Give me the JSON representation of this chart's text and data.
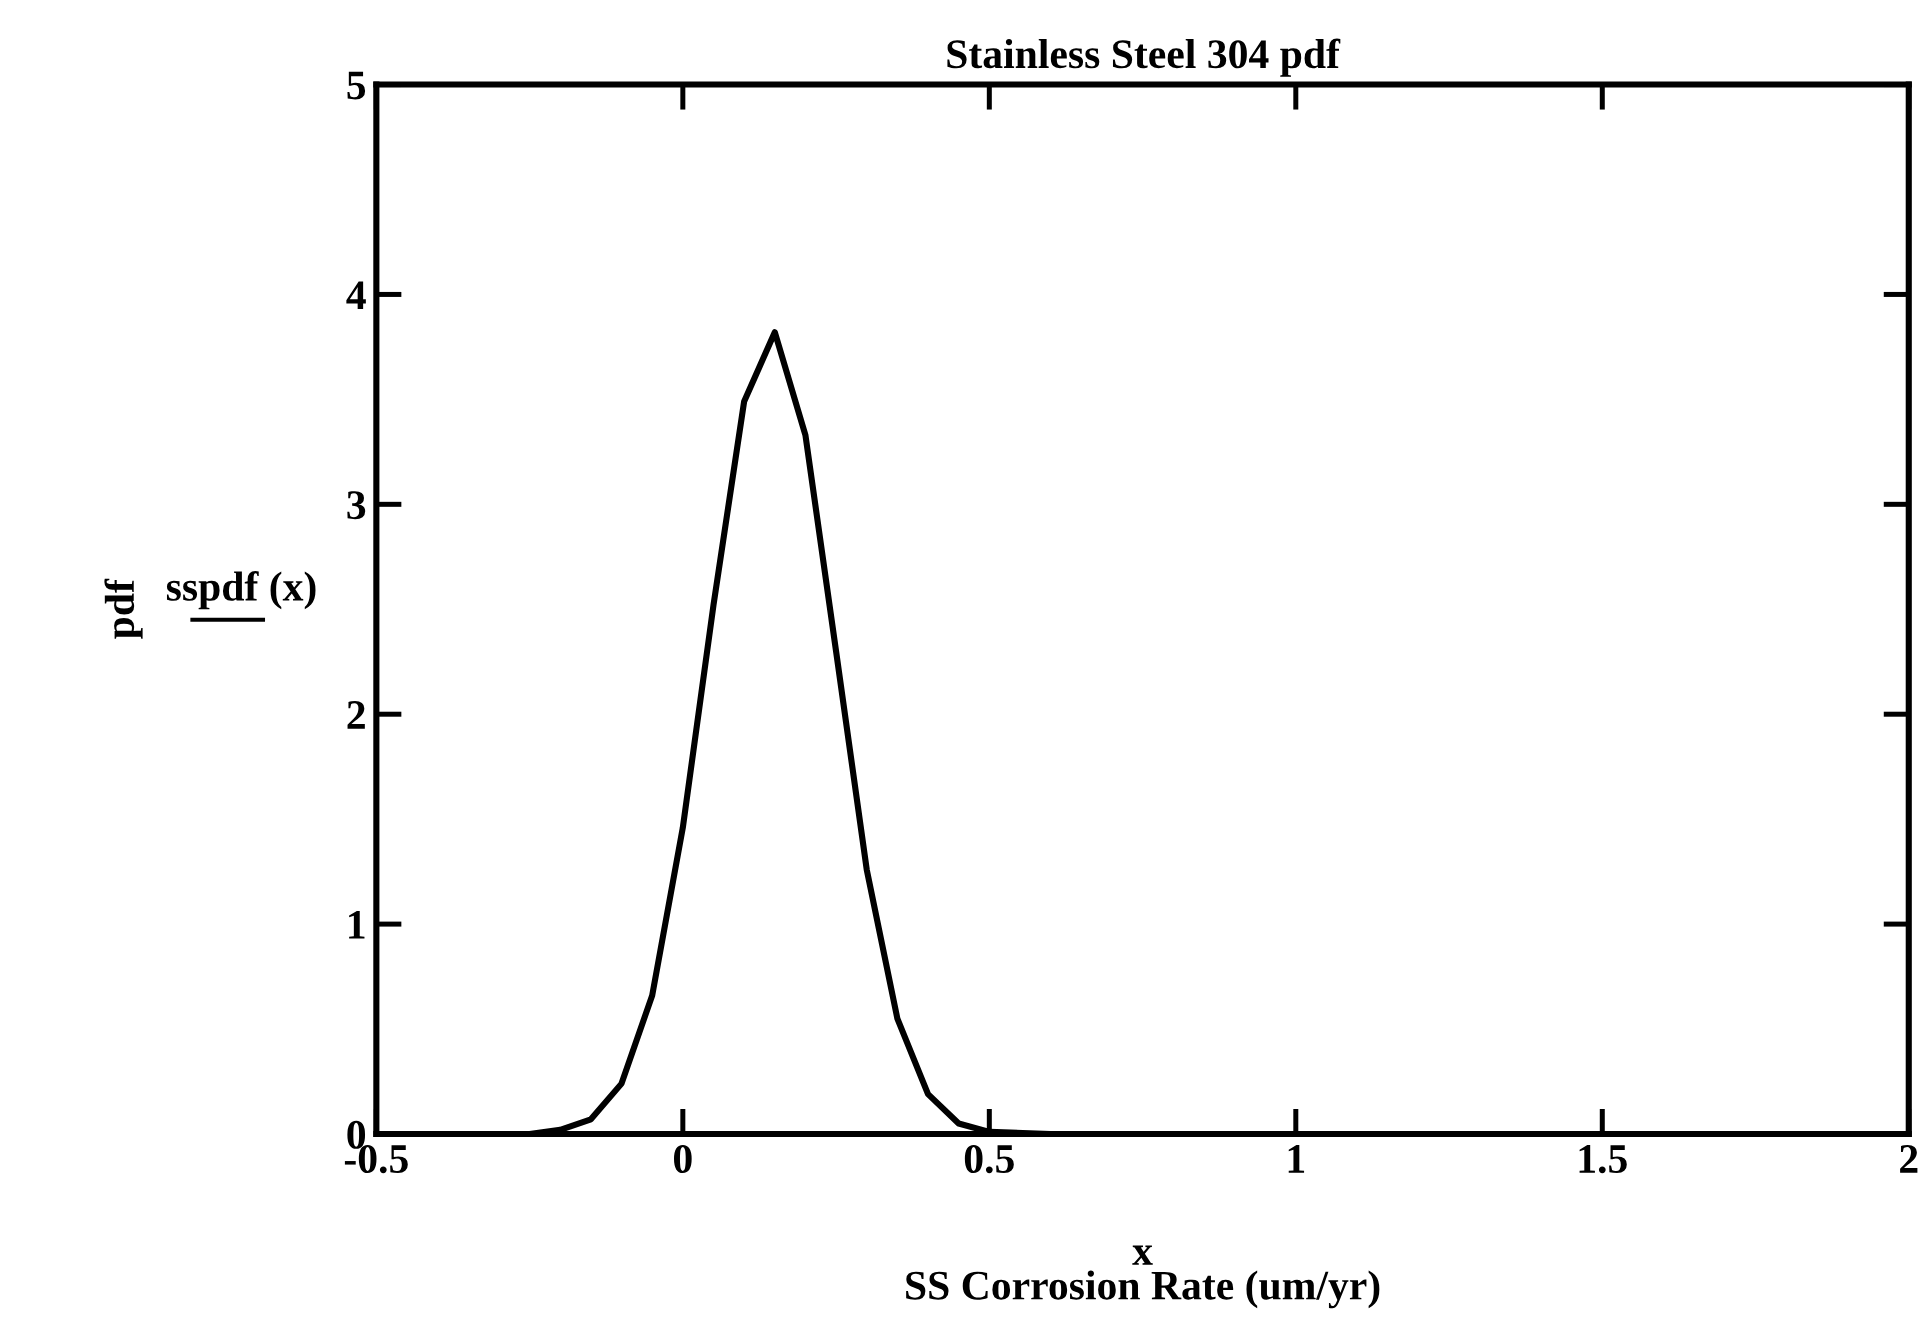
{
  "chart_data": {
    "type": "line",
    "title": "Stainless Steel 304 pdf",
    "xlabel": "SS Corrosion Rate (um/yr)",
    "ylabel": "sspdf (x)",
    "annotations": [
      "x",
      "pdf"
    ],
    "x": [
      -0.5,
      -0.3,
      -0.25,
      -0.2,
      -0.15,
      -0.1,
      -0.05,
      0,
      0.05,
      0.1,
      0.15,
      0.2,
      0.25,
      0.3,
      0.35,
      0.4,
      0.45,
      0.5,
      0.6,
      0.8,
      1.05
    ],
    "series": [
      {
        "color": "#000000",
        "values": [
          0,
          0,
          0,
          0.02,
          0.07,
          0.24,
          0.66,
          1.46,
          2.52,
          3.49,
          3.82,
          3.33,
          2.3,
          1.26,
          0.55,
          0.19,
          0.05,
          0.01,
          0,
          0,
          0
        ]
      }
    ],
    "xlim": [
      -0.5,
      2
    ],
    "xticks": [
      -0.5,
      0,
      0.5,
      1,
      1.5,
      2
    ],
    "ylim": [
      0,
      5
    ],
    "yticks": [
      0,
      1,
      2,
      3,
      4,
      5
    ],
    "grid": false,
    "legend": false,
    "marker": "none",
    "line_style": "solid"
  }
}
